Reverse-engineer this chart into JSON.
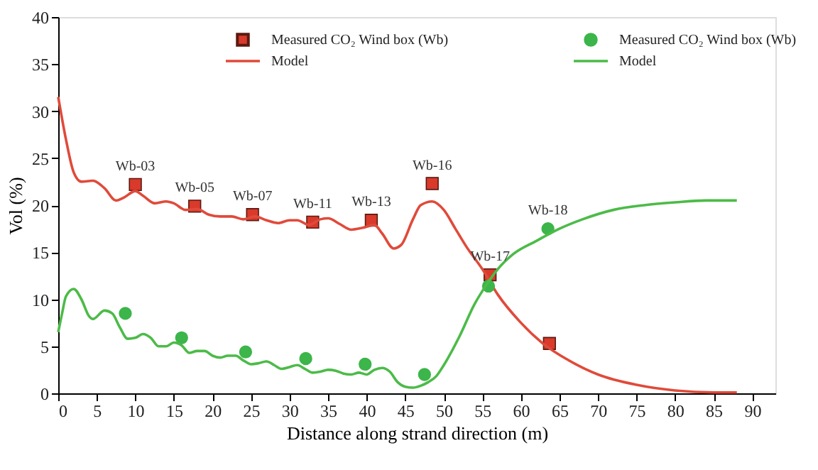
{
  "chart_data": {
    "type": "line",
    "xlabel": "Distance along strand direction (m)",
    "ylabel": "Vol (%)",
    "xlim": [
      0,
      93
    ],
    "ylim": [
      0,
      40
    ],
    "xticks": [
      0,
      5,
      10,
      15,
      20,
      25,
      30,
      35,
      40,
      45,
      50,
      55,
      60,
      65,
      70,
      75,
      80,
      85,
      90
    ],
    "yticks": [
      0,
      5,
      10,
      15,
      20,
      25,
      30,
      35,
      40
    ],
    "grid": false,
    "legend": "top",
    "series": [
      {
        "name": "Measured CO₂ Wind box (Wb)",
        "type": "scatter",
        "marker": "square",
        "color": "#d93a2b",
        "x": [
          10,
          17.7,
          25.2,
          33,
          40.6,
          48.5,
          56,
          63.7
        ],
        "values": [
          22.2,
          19.9,
          19,
          18.2,
          18.4,
          22.3,
          12.6,
          5.3
        ]
      },
      {
        "name": "Model",
        "color": "#e04a3a",
        "x": [
          0,
          1,
          2,
          3,
          4.5,
          6,
          7.5,
          8.5,
          10,
          11,
          12.5,
          14,
          15,
          16.5,
          18,
          19.5,
          21,
          22.5,
          24,
          25.5,
          27,
          28.5,
          30,
          31,
          32.5,
          34,
          35,
          36.5,
          38,
          39.5,
          41,
          42,
          43.5,
          44.5,
          46,
          47,
          48.5,
          50,
          51.5,
          53,
          55,
          57,
          60,
          63,
          66,
          70,
          75,
          80,
          85,
          88
        ],
        "values": [
          31.5,
          27,
          23.5,
          22.5,
          22.6,
          21.8,
          20.5,
          20.8,
          21.5,
          21,
          20.2,
          20.4,
          20.2,
          19.5,
          19.6,
          19,
          18.8,
          18.8,
          18.5,
          18.8,
          18.4,
          18.1,
          18.4,
          18.4,
          17.9,
          18.5,
          18.6,
          18,
          17.4,
          17.6,
          17.9,
          17,
          15.4,
          15.8,
          18.5,
          20,
          20.4,
          19.5,
          17.5,
          15.5,
          13.2,
          10.5,
          7.5,
          5.2,
          3.6,
          2,
          0.9,
          0.3,
          0.1,
          0.1
        ]
      },
      {
        "name": "Measured CO₂ Wind box (Wb)",
        "type": "scatter",
        "marker": "circle",
        "color": "#3cb54a",
        "x": [
          8.7,
          16,
          24.3,
          32.1,
          39.8,
          47.5,
          55.8,
          63.5
        ],
        "values": [
          8.5,
          5.9,
          4.4,
          3.7,
          3.1,
          2,
          11.4,
          17.5
        ]
      },
      {
        "name": "Model",
        "color": "#4cbb48",
        "x": [
          0,
          0.5,
          1,
          2,
          3,
          4,
          4.5,
          6,
          7,
          8,
          9,
          10,
          11,
          12,
          13,
          14,
          15,
          16,
          17,
          18,
          19,
          20,
          21,
          22,
          23,
          24,
          25,
          26,
          27,
          28,
          29,
          30,
          31,
          32,
          33,
          34,
          35,
          36,
          37,
          38,
          39,
          40,
          41,
          42,
          43,
          44,
          45,
          46,
          47,
          48,
          49,
          50,
          52,
          54,
          55.5,
          57,
          59,
          62,
          65,
          68,
          72,
          76,
          80,
          84,
          88
        ],
        "values": [
          6.5,
          8.5,
          10.3,
          11.1,
          10,
          8.2,
          7.9,
          8.8,
          8.5,
          7,
          5.8,
          5.9,
          6.3,
          5.9,
          5,
          5,
          5.4,
          5.1,
          4.3,
          4.5,
          4.5,
          4,
          3.8,
          4,
          4,
          3.5,
          3.1,
          3.2,
          3.4,
          3,
          2.6,
          2.8,
          3,
          2.6,
          2.2,
          2.3,
          2.5,
          2.4,
          2.1,
          2,
          2.2,
          2,
          2.5,
          2.7,
          2.3,
          1.2,
          0.7,
          0.6,
          0.8,
          1.2,
          1.8,
          3,
          6,
          9.5,
          11.5,
          13.2,
          14.8,
          16.2,
          17.5,
          18.5,
          19.5,
          20,
          20.3,
          20.5,
          20.5
        ]
      }
    ],
    "annotations": [
      {
        "text": "Wb-03",
        "x": 10,
        "y": 22.2
      },
      {
        "text": "Wb-05",
        "x": 17.7,
        "y": 19.9
      },
      {
        "text": "Wb-07",
        "x": 25.2,
        "y": 19
      },
      {
        "text": "Wb-11",
        "x": 33,
        "y": 18.2
      },
      {
        "text": "Wb-13",
        "x": 40.6,
        "y": 18.4
      },
      {
        "text": "Wb-16",
        "x": 48.5,
        "y": 22.3
      },
      {
        "text": "Wb-17",
        "x": 56,
        "y": 12.6
      },
      {
        "text": "Wb-18",
        "x": 63.5,
        "y": 17.5
      }
    ]
  }
}
